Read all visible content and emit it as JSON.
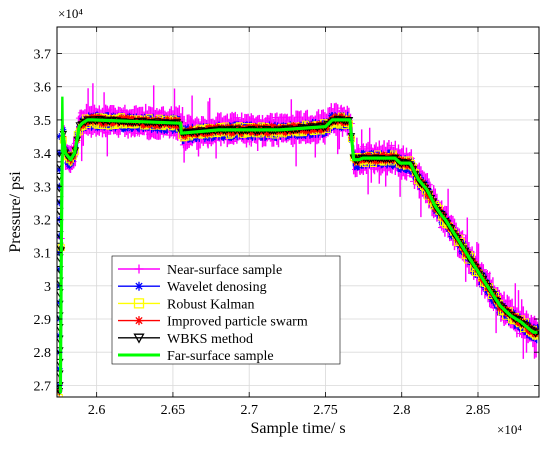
{
  "chart_data": {
    "type": "line",
    "title": "",
    "xlabel": "Sample time/ s",
    "ylabel": "Pressure/ psi",
    "x_multiplier_label": "×10⁴",
    "y_multiplier_label": "×10⁴",
    "xlim": [
      2.574,
      2.89
    ],
    "ylim": [
      2.665,
      3.78
    ],
    "x_ticks": [
      2.6,
      2.65,
      2.7,
      2.75,
      2.8,
      2.85
    ],
    "x_tick_labels": [
      "2.6",
      "2.65",
      "2.7",
      "2.75",
      "2.8",
      "2.85"
    ],
    "y_ticks": [
      2.7,
      2.8,
      2.9,
      3.0,
      3.1,
      3.2,
      3.3,
      3.4,
      3.5,
      3.6,
      3.7
    ],
    "y_tick_labels": [
      "2.7",
      "2.8",
      "2.9",
      "3",
      "3.1",
      "3.2",
      "3.3",
      "3.4",
      "3.5",
      "3.6",
      "3.7"
    ],
    "grid": true,
    "legend_position": "lower-left",
    "trend": {
      "x": [
        2.5755,
        2.5762,
        2.5768,
        2.5772,
        2.5777,
        2.578,
        2.5795,
        2.583,
        2.5855,
        2.5875,
        2.5885,
        2.5905,
        2.594,
        2.597,
        2.655,
        2.6555,
        2.68,
        2.72,
        2.75,
        2.7545,
        2.766,
        2.7685,
        2.772,
        2.7745,
        2.7955,
        2.799,
        2.8055,
        2.811,
        2.8165,
        2.822,
        2.8265,
        2.8285,
        2.8355,
        2.8435,
        2.8505,
        2.8575,
        2.8645,
        2.8715,
        2.8785,
        2.8835,
        2.8865,
        2.889
      ],
      "y": [
        2.68,
        2.68,
        3.1,
        3.32,
        3.45,
        3.46,
        3.4,
        3.38,
        3.4,
        3.45,
        3.48,
        3.49,
        3.5,
        3.5,
        3.49,
        3.46,
        3.47,
        3.47,
        3.48,
        3.5,
        3.5,
        3.38,
        3.38,
        3.385,
        3.385,
        3.37,
        3.37,
        3.32,
        3.29,
        3.24,
        3.21,
        3.2,
        3.15,
        3.09,
        3.04,
        2.99,
        2.94,
        2.91,
        2.89,
        2.87,
        2.86,
        2.86
      ]
    },
    "series": [
      {
        "name": "Near-surface sample",
        "color": "#ff00ff",
        "marker": "plus",
        "band": 0.055,
        "offset": 0,
        "spike_count": 5
      },
      {
        "name": "Wavelet denosing",
        "color": "#0000ff",
        "marker": "asterisk",
        "band": 0.03,
        "offset": -0.004
      },
      {
        "name": "Robust Kalman",
        "color": "#ffff00",
        "marker": "square",
        "band": 0.022,
        "offset": -0.002
      },
      {
        "name": "Improved particle swarm",
        "color": "#ff0000",
        "marker": "star",
        "band": 0.018,
        "offset": 0
      },
      {
        "name": "WBKS method",
        "color": "#000000",
        "marker": "triangle-down",
        "band": 0.006,
        "offset": 0
      },
      {
        "name": "Far-surface sample",
        "color": "#00ff00",
        "marker": "none",
        "band": 0,
        "offset": 0
      }
    ]
  }
}
